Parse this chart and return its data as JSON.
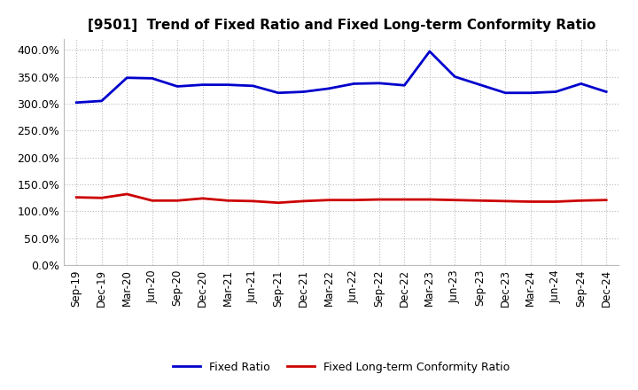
{
  "title": "[9501]  Trend of Fixed Ratio and Fixed Long-term Conformity Ratio",
  "x_labels": [
    "Sep-19",
    "Dec-19",
    "Mar-20",
    "Jun-20",
    "Sep-20",
    "Dec-20",
    "Mar-21",
    "Jun-21",
    "Sep-21",
    "Dec-21",
    "Mar-22",
    "Jun-22",
    "Sep-22",
    "Dec-22",
    "Mar-23",
    "Jun-23",
    "Sep-23",
    "Dec-23",
    "Mar-24",
    "Jun-24",
    "Sep-24",
    "Dec-24"
  ],
  "fixed_ratio": [
    302,
    305,
    348,
    347,
    332,
    335,
    335,
    333,
    320,
    322,
    328,
    337,
    338,
    334,
    397,
    350,
    335,
    320,
    320,
    322,
    337,
    322
  ],
  "fixed_lt_ratio": [
    126,
    125,
    132,
    120,
    120,
    124,
    120,
    119,
    116,
    119,
    121,
    121,
    122,
    122,
    122,
    121,
    120,
    119,
    118,
    118,
    120,
    121
  ],
  "fixed_ratio_color": "#0000CC",
  "fixed_lt_ratio_color": "#CC0000",
  "ylim": [
    0,
    420
  ],
  "yticks": [
    0,
    50,
    100,
    150,
    200,
    250,
    300,
    350,
    400
  ],
  "background_color": "#FFFFFF",
  "plot_bg_color": "#FFFFFF",
  "grid_color": "#BBBBBB",
  "legend_labels": [
    "Fixed Ratio",
    "Fixed Long-term Conformity Ratio"
  ]
}
